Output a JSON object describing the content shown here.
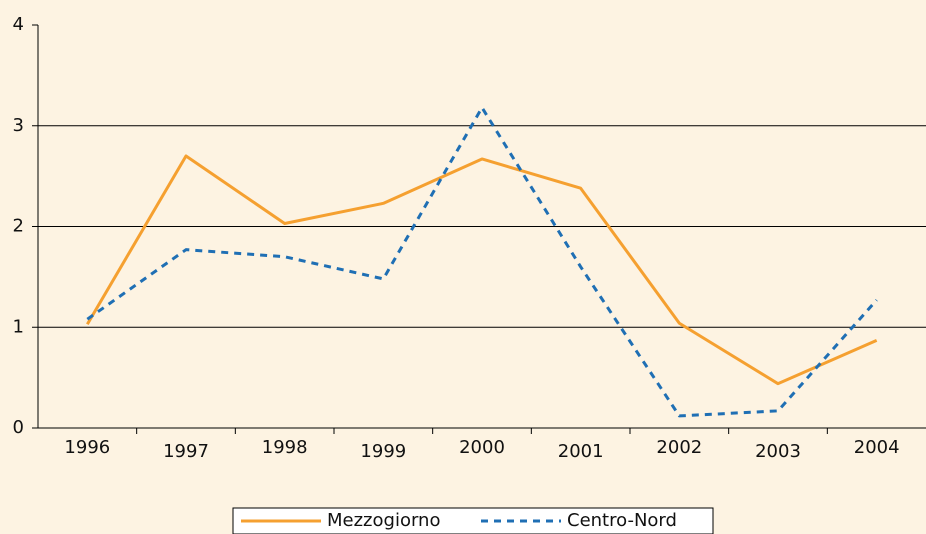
{
  "chart_data": {
    "type": "line",
    "categories": [
      "1996",
      "1997",
      "1998",
      "1999",
      "2000",
      "2001",
      "2002",
      "2003",
      "2004"
    ],
    "series": [
      {
        "name": "Mezzogiorno",
        "color": "#f5a030",
        "dash": false,
        "values": [
          1.03,
          2.7,
          2.03,
          2.23,
          2.67,
          2.38,
          1.04,
          0.44,
          0.87
        ]
      },
      {
        "name": "Centro-Nord",
        "color": "#1f6fb4",
        "dash": true,
        "values": [
          1.08,
          1.77,
          1.7,
          1.48,
          3.18,
          1.6,
          0.12,
          0.17,
          1.27
        ]
      }
    ],
    "ylim": [
      0,
      4
    ],
    "yticks": [
      0,
      1,
      2,
      3,
      4
    ],
    "grid": true
  }
}
